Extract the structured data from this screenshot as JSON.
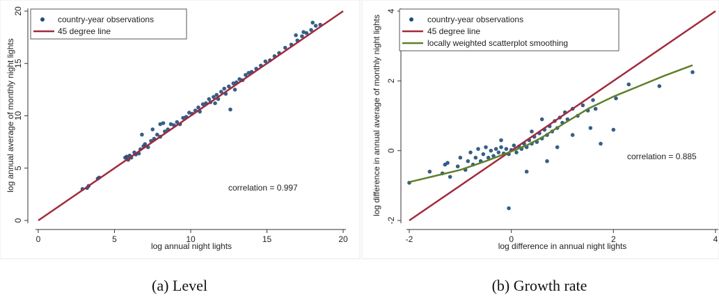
{
  "chart_data": [
    {
      "type": "scatter",
      "caption": "(a) Level",
      "xlabel": "log annual night lights",
      "ylabel": "log annual average of monthly night lights",
      "xlim": [
        0,
        20
      ],
      "ylim": [
        0,
        20
      ],
      "xticks": [
        0,
        5,
        10,
        15,
        20
      ],
      "yticks": [
        0,
        5,
        10,
        15,
        20
      ],
      "grid": false,
      "legend_position": "top-left",
      "annotation": "correlation = 0.997",
      "series": [
        {
          "name": "country-year observations",
          "kind": "scatter",
          "color": "#1f4e79",
          "points": [
            [
              2.9,
              3.0
            ],
            [
              3.2,
              3.1
            ],
            [
              3.3,
              3.3
            ],
            [
              3.9,
              4.0
            ],
            [
              4.0,
              4.1
            ],
            [
              5.7,
              6.0
            ],
            [
              5.8,
              6.1
            ],
            [
              5.9,
              5.8
            ],
            [
              6.0,
              6.2
            ],
            [
              6.1,
              6.0
            ],
            [
              6.3,
              6.5
            ],
            [
              6.4,
              6.3
            ],
            [
              6.6,
              6.4
            ],
            [
              6.7,
              6.8
            ],
            [
              6.9,
              7.1
            ],
            [
              7.0,
              7.3
            ],
            [
              7.2,
              7.0
            ],
            [
              7.4,
              7.6
            ],
            [
              7.6,
              7.8
            ],
            [
              7.8,
              8.2
            ],
            [
              8.0,
              8.0
            ],
            [
              8.2,
              9.3
            ],
            [
              8.3,
              8.5
            ],
            [
              8.5,
              8.7
            ],
            [
              8.7,
              9.2
            ],
            [
              8.9,
              9.1
            ],
            [
              9.1,
              9.4
            ],
            [
              9.3,
              9.2
            ],
            [
              9.5,
              9.8
            ],
            [
              9.7,
              9.9
            ],
            [
              9.9,
              10.3
            ],
            [
              10.1,
              10.2
            ],
            [
              10.3,
              10.5
            ],
            [
              10.5,
              10.8
            ],
            [
              10.6,
              10.4
            ],
            [
              10.8,
              11.1
            ],
            [
              11.0,
              11.2
            ],
            [
              11.2,
              11.6
            ],
            [
              11.3,
              11.3
            ],
            [
              11.5,
              11.8
            ],
            [
              11.7,
              12.0
            ],
            [
              11.8,
              11.6
            ],
            [
              12.0,
              12.3
            ],
            [
              12.2,
              12.6
            ],
            [
              12.3,
              12.1
            ],
            [
              12.5,
              12.8
            ],
            [
              12.6,
              10.6
            ],
            [
              12.8,
              13.1
            ],
            [
              13.0,
              13.2
            ],
            [
              13.2,
              13.5
            ],
            [
              13.4,
              13.4
            ],
            [
              13.6,
              13.9
            ],
            [
              13.8,
              14.1
            ],
            [
              14.0,
              14.2
            ],
            [
              14.3,
              14.5
            ],
            [
              14.6,
              14.8
            ],
            [
              14.9,
              15.2
            ],
            [
              15.2,
              15.3
            ],
            [
              15.5,
              15.7
            ],
            [
              15.8,
              16.0
            ],
            [
              16.2,
              16.5
            ],
            [
              16.6,
              16.8
            ],
            [
              17.0,
              17.2
            ],
            [
              17.3,
              17.6
            ],
            [
              17.6,
              17.9
            ],
            [
              17.9,
              18.2
            ],
            [
              18.2,
              18.6
            ],
            [
              18.5,
              18.7
            ],
            [
              8.0,
              9.2
            ],
            [
              7.5,
              8.7
            ],
            [
              6.8,
              8.2
            ],
            [
              16.9,
              17.7
            ],
            [
              17.4,
              18.0
            ],
            [
              18.0,
              18.9
            ],
            [
              12.9,
              12.5
            ],
            [
              11.6,
              11.2
            ]
          ]
        },
        {
          "name": "45 degree line",
          "kind": "line",
          "color": "#a3283c",
          "points": [
            [
              0,
              0
            ],
            [
              20,
              20
            ]
          ]
        }
      ]
    },
    {
      "type": "scatter",
      "caption": "(b) Growth rate",
      "xlabel": "log difference in annual night lights",
      "ylabel": "log difference in annual average of monthly night lights",
      "xlim": [
        -2,
        4
      ],
      "ylim": [
        -2,
        4
      ],
      "xticks": [
        -2,
        0,
        2,
        4
      ],
      "yticks": [
        -2,
        0,
        2,
        4
      ],
      "grid": false,
      "legend_position": "top-left",
      "annotation": "correlation = 0.885",
      "series": [
        {
          "name": "country-year observations",
          "kind": "scatter",
          "color": "#1f4e79",
          "points": [
            [
              -2.0,
              -0.92
            ],
            [
              -1.35,
              -0.65
            ],
            [
              -1.25,
              -0.35
            ],
            [
              -1.2,
              -0.75
            ],
            [
              -1.05,
              -0.45
            ],
            [
              -1.0,
              -0.2
            ],
            [
              -0.9,
              -0.55
            ],
            [
              -0.85,
              -0.3
            ],
            [
              -0.8,
              -0.05
            ],
            [
              -0.75,
              -0.4
            ],
            [
              -0.7,
              -0.2
            ],
            [
              -0.65,
              0.05
            ],
            [
              -0.6,
              -0.3
            ],
            [
              -0.55,
              -0.1
            ],
            [
              -0.5,
              0.1
            ],
            [
              -0.45,
              -0.2
            ],
            [
              -0.4,
              0.0
            ],
            [
              -0.35,
              -0.15
            ],
            [
              -0.3,
              0.05
            ],
            [
              -0.25,
              -0.05
            ],
            [
              -0.2,
              0.1
            ],
            [
              -0.15,
              -0.08
            ],
            [
              -0.1,
              0.05
            ],
            [
              -0.05,
              -0.1
            ],
            [
              0.0,
              0.02
            ],
            [
              0.05,
              0.15
            ],
            [
              0.1,
              -0.05
            ],
            [
              0.15,
              0.12
            ],
            [
              0.2,
              0.05
            ],
            [
              0.25,
              0.2
            ],
            [
              0.3,
              0.1
            ],
            [
              0.35,
              0.3
            ],
            [
              0.4,
              0.2
            ],
            [
              0.45,
              0.4
            ],
            [
              0.5,
              0.25
            ],
            [
              0.55,
              0.5
            ],
            [
              0.6,
              0.35
            ],
            [
              0.65,
              0.6
            ],
            [
              0.7,
              0.45
            ],
            [
              0.75,
              0.7
            ],
            [
              0.8,
              0.55
            ],
            [
              0.85,
              0.85
            ],
            [
              0.9,
              0.65
            ],
            [
              0.95,
              0.95
            ],
            [
              1.0,
              0.8
            ],
            [
              1.05,
              1.1
            ],
            [
              1.1,
              0.9
            ],
            [
              1.2,
              1.2
            ],
            [
              1.3,
              1.0
            ],
            [
              1.4,
              1.3
            ],
            [
              1.5,
              1.15
            ],
            [
              1.6,
              1.45
            ],
            [
              1.65,
              1.2
            ],
            [
              2.05,
              1.5
            ],
            [
              2.3,
              1.9
            ],
            [
              2.9,
              1.85
            ],
            [
              3.55,
              2.25
            ],
            [
              1.55,
              0.65
            ],
            [
              1.75,
              0.2
            ],
            [
              2.0,
              0.6
            ],
            [
              0.7,
              -0.3
            ],
            [
              0.3,
              -0.6
            ],
            [
              -0.05,
              -1.65
            ],
            [
              -1.6,
              -0.6
            ],
            [
              -1.3,
              -0.4
            ],
            [
              0.9,
              0.1
            ],
            [
              1.2,
              0.45
            ],
            [
              0.4,
              0.55
            ],
            [
              -0.2,
              0.3
            ],
            [
              0.6,
              0.9
            ]
          ]
        },
        {
          "name": "45 degree line",
          "kind": "line",
          "color": "#a3283c",
          "points": [
            [
              -2,
              -2
            ],
            [
              4,
              4
            ]
          ]
        },
        {
          "name": "locally weighted scatterplot smoothing",
          "kind": "line",
          "color": "#5f7f2a",
          "points": [
            [
              -2.0,
              -0.9
            ],
            [
              -1.0,
              -0.55
            ],
            [
              -0.5,
              -0.3
            ],
            [
              0.0,
              -0.02
            ],
            [
              0.3,
              0.15
            ],
            [
              0.6,
              0.38
            ],
            [
              1.0,
              0.75
            ],
            [
              1.5,
              1.2
            ],
            [
              2.0,
              1.55
            ],
            [
              2.5,
              1.85
            ],
            [
              3.0,
              2.15
            ],
            [
              3.55,
              2.45
            ]
          ]
        }
      ]
    }
  ]
}
